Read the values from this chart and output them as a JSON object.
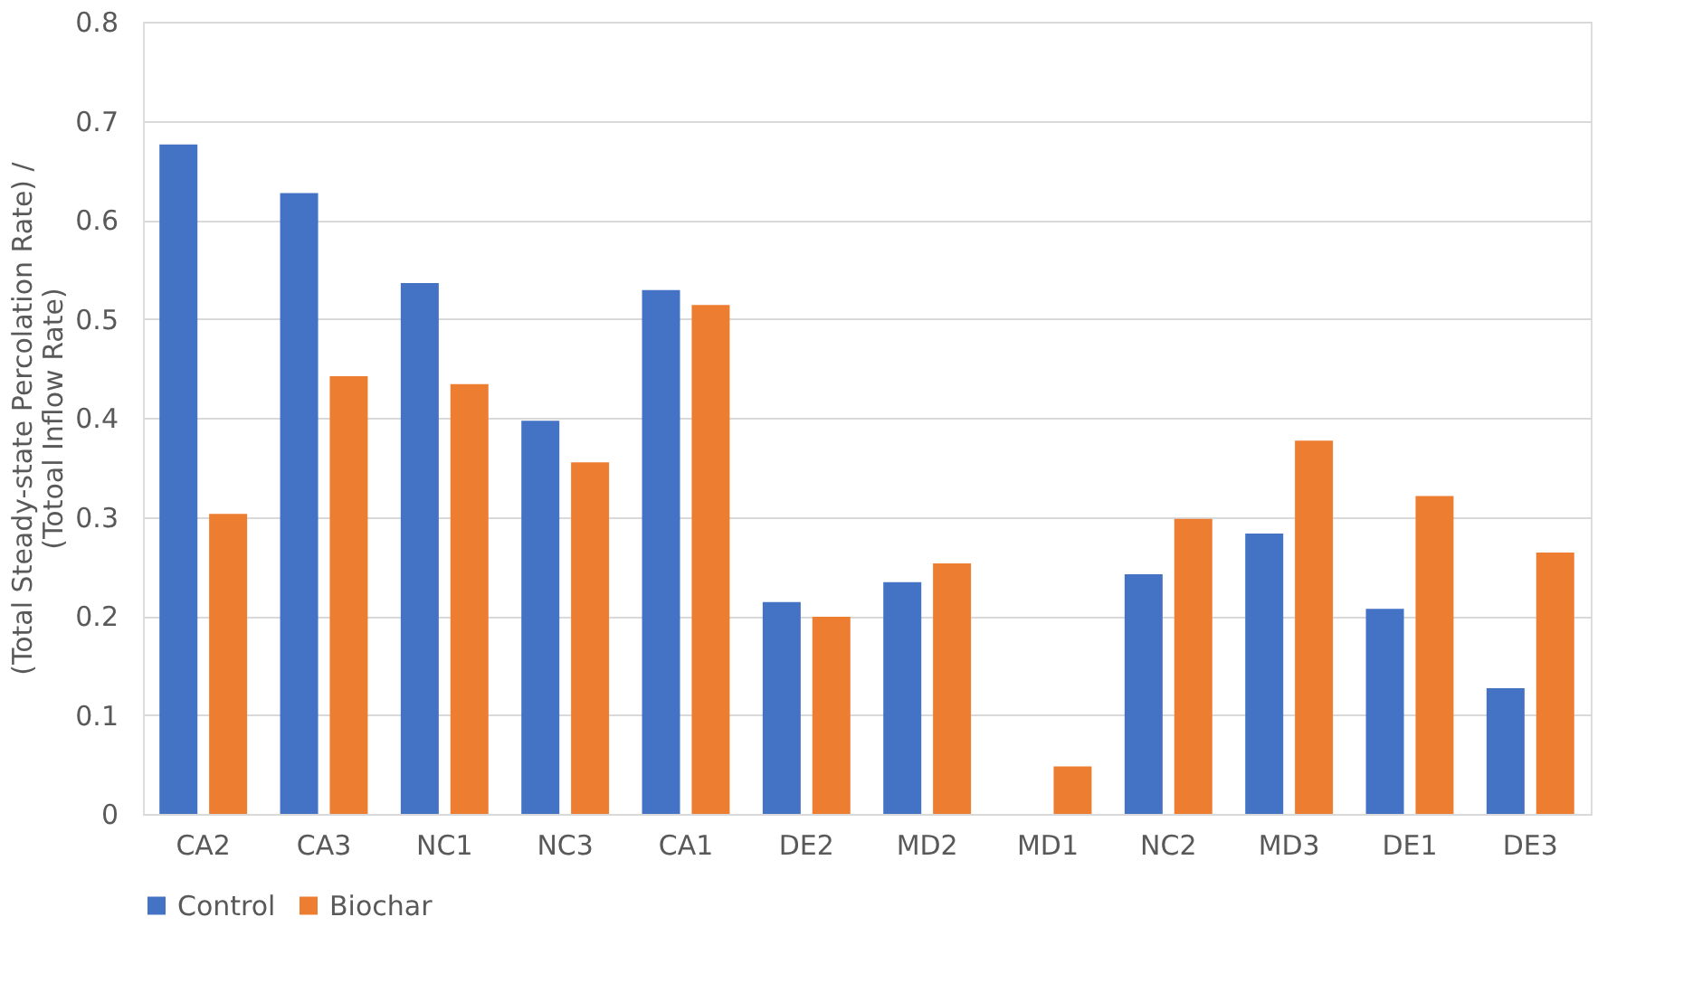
{
  "chart_data": {
    "type": "bar",
    "ylabel": "(Total Steady-state Percolation Rate) /\n(Totoal Inflow Rate)",
    "categories": [
      "CA2",
      "CA3",
      "NC1",
      "NC3",
      "CA1",
      "DE2",
      "MD2",
      "MD1",
      "NC2",
      "MD3",
      "DE1",
      "DE3"
    ],
    "series": [
      {
        "name": "Control",
        "color": "#4472c4",
        "values": [
          0.676,
          0.627,
          0.536,
          0.397,
          0.529,
          0.214,
          0.234,
          null,
          0.242,
          0.283,
          0.207,
          0.127
        ]
      },
      {
        "name": "Biochar",
        "color": "#ed7d31",
        "values": [
          0.303,
          0.442,
          0.434,
          0.355,
          0.514,
          0.199,
          0.253,
          0.048,
          0.298,
          0.377,
          0.321,
          0.264
        ]
      }
    ],
    "ylim": [
      0,
      0.8
    ],
    "yticks": [
      0,
      0.1,
      0.2,
      0.3,
      0.4,
      0.5,
      0.6,
      0.7,
      0.8
    ],
    "grid": "y",
    "legend": "bottom"
  }
}
